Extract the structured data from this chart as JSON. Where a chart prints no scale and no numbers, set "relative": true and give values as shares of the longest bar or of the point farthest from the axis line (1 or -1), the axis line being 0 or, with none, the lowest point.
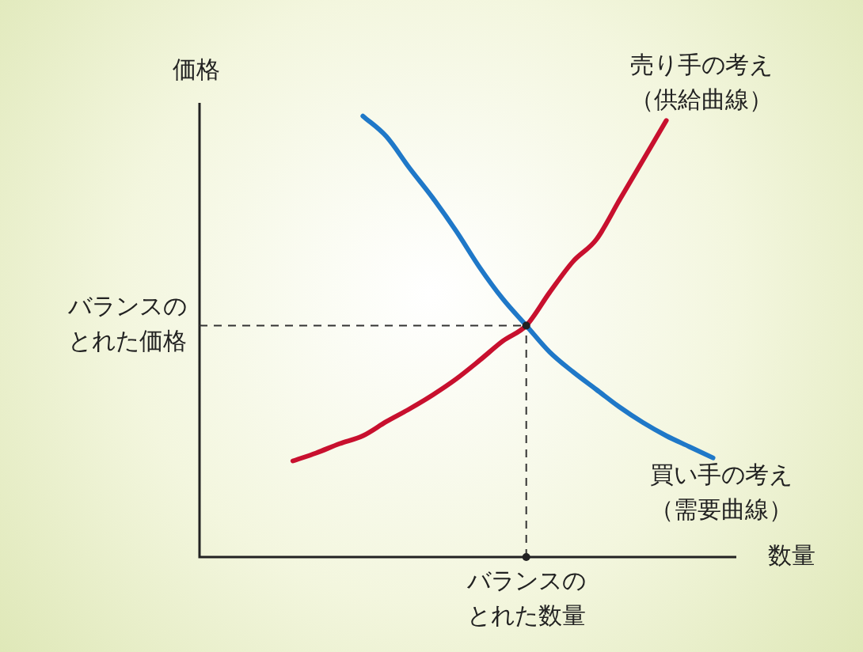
{
  "chart_data": {
    "type": "line",
    "relative": true,
    "xlabel": "数量",
    "ylabel": "価格",
    "categories": [
      null,
      null,
      null,
      null,
      null,
      null,
      null,
      null,
      null,
      null,
      null,
      null,
      null,
      null,
      null,
      null,
      null,
      null,
      null,
      null,
      null,
      null,
      null,
      null
    ],
    "series": [
      {
        "name": "売り手の考え（供給曲線）",
        "color": "#c8102e",
        "values": [
          null,
          null,
          null,
          null,
          0.218,
          0.236,
          0.257,
          0.275,
          0.307,
          0.336,
          0.368,
          0.404,
          0.446,
          0.49,
          0.525,
          0.6,
          0.67,
          0.72,
          0.81,
          0.9,
          0.99,
          null,
          null,
          null
        ]
      },
      {
        "name": "買い手の考え（需要曲線）",
        "color": "#1f78c8",
        "values": [
          null,
          null,
          null,
          null,
          null,
          null,
          null,
          1,
          0.954,
          0.882,
          0.814,
          0.739,
          0.657,
          0.585,
          0.525,
          0.465,
          0.42,
          0.38,
          0.34,
          0.305,
          0.275,
          0.25,
          0.225,
          null
        ]
      }
    ],
    "ref_lines": [
      {
        "axis": "y",
        "value": 0.525,
        "label": "バランスのとれた価格",
        "line_style": "dashed"
      }
    ],
    "annotations": [
      "バランスのとれた数量"
    ],
    "legend": false,
    "grid": false,
    "marker": "none",
    "line_style": "solid"
  }
}
